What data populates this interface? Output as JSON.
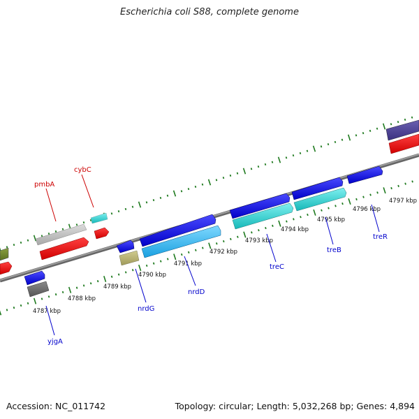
{
  "title": "Escherichia coli S88, complete genome",
  "footer": {
    "accession": "Accession: NC_011742",
    "summary": "Topology: circular; Length: 5,032,268 bp; Genes: 4,894"
  },
  "kbp_ticks": [
    "4787 kbp",
    "4788 kbp",
    "4789 kbp",
    "4790 kbp",
    "4791 kbp",
    "4792 kbp",
    "4793 kbp",
    "4794 kbp",
    "4795 kbp",
    "4796 kbp",
    "4797 kbp"
  ],
  "gene_labels": {
    "pmbA": "pmbA",
    "cybC": "cybC",
    "yjgA": "yjgA",
    "nrdG": "nrdG",
    "nrdD": "nrdD",
    "treC": "treC",
    "treB": "treB",
    "treR": "treR"
  },
  "colors": {
    "backbone": "#8a8a8a",
    "tick": "#1f7a1f",
    "red_label": "#cc0000",
    "blue_label": "#0000cc"
  }
}
